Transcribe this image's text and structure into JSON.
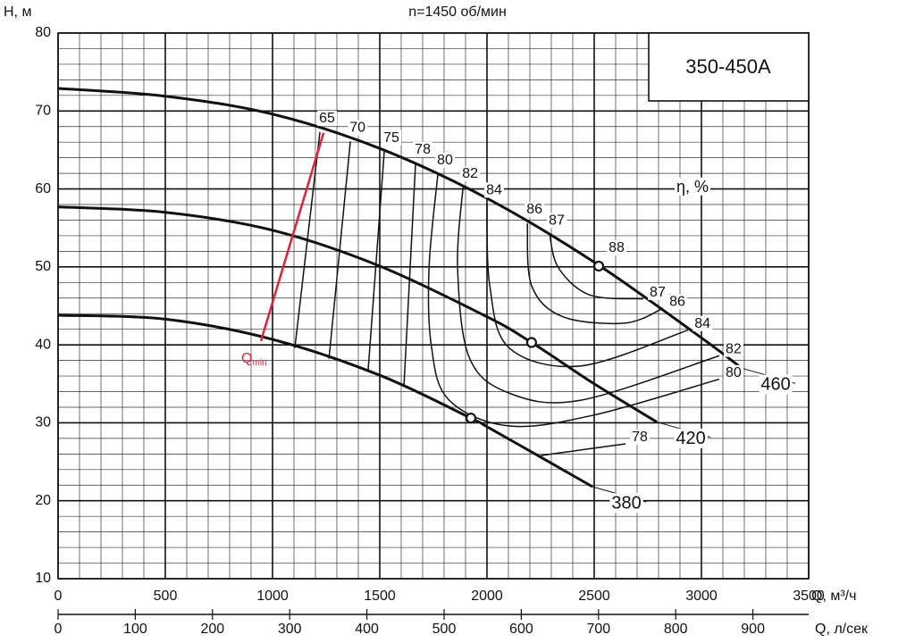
{
  "chart_data": {
    "type": "line",
    "title": "n=1450 об/мин",
    "model": "350-450A",
    "ylabel": "H, м",
    "xlabel": "Q, м³/ч",
    "x2label": "Q, л/сек",
    "eta_label": "η, %",
    "xlim": [
      0,
      3500
    ],
    "xticks": [
      0,
      500,
      1000,
      1500,
      2000,
      2500,
      3000,
      3500
    ],
    "x2lim": [
      0,
      972.2
    ],
    "x2ticks": [
      0,
      100,
      200,
      300,
      400,
      500,
      600,
      700,
      800,
      900
    ],
    "ylim": [
      10,
      80
    ],
    "yticks": [
      10,
      20,
      30,
      40,
      50,
      60,
      70,
      80
    ],
    "grid": true,
    "grid_minor": {
      "x": 100,
      "y": 2
    },
    "curves": [
      {
        "name": "460",
        "color": "#111111",
        "x": [
          0,
          500,
          1000,
          1500,
          2000,
          2500,
          3000,
          3188
        ],
        "values": [
          72.9,
          71.9,
          69.6,
          65.2,
          58.8,
          50.6,
          40.9,
          37.0
        ]
      },
      {
        "name": "420",
        "color": "#111111",
        "x": [
          0,
          500,
          1000,
          1500,
          2000,
          2208,
          2500,
          2792
        ],
        "values": [
          57.7,
          57.0,
          54.7,
          50.1,
          43.6,
          40.3,
          35.0,
          30.1
        ]
      },
      {
        "name": "380",
        "color": "#111111",
        "x": [
          0,
          500,
          1000,
          1500,
          1925,
          2000,
          2250,
          2492
        ],
        "values": [
          43.8,
          43.3,
          40.7,
          36.1,
          30.6,
          29.5,
          25.6,
          21.8
        ]
      }
    ],
    "qmin": {
      "label": "Q",
      "sub": "min",
      "color": "#e0223a",
      "x": [
        1238,
        946
      ],
      "values": [
        67.2,
        40.5
      ]
    },
    "efficiency": [
      {
        "eta": 65,
        "x": [
          1221,
          1104
        ],
        "values": [
          67.3,
          39.6
        ]
      },
      {
        "eta": 70,
        "x": [
          1363,
          1263
        ],
        "values": [
          66.1,
          38.2
        ]
      },
      {
        "eta": 75,
        "x": [
          1521,
          1446
        ],
        "values": [
          64.8,
          36.8
        ]
      },
      {
        "eta": 78,
        "x": [
          1667,
          1613,
          null,
          2250,
          2646
        ],
        "values": [
          63.3,
          34.8,
          null,
          25.8,
          27.3
        ]
      },
      {
        "eta": 80,
        "x": [
          1771,
          1730,
          1740,
          1820,
          2100,
          2500,
          3083
        ],
        "values": [
          61.9,
          50.0,
          40.0,
          33.0,
          29.6,
          31.0,
          35.6
        ]
      },
      {
        "eta": 82,
        "x": [
          1888,
          1863,
          1917,
          2104,
          2438,
          3083
        ],
        "values": [
          60.2,
          49.9,
          38.4,
          33.8,
          32.9,
          38.6
        ]
      },
      {
        "eta": 84,
        "x": [
          2000,
          2013,
          2104,
          2438,
          2938
        ],
        "values": [
          58.1,
          47.6,
          39.6,
          37.3,
          41.9
        ]
      },
      {
        "eta": 86,
        "x": [
          2188,
          2208,
          2354,
          2646,
          2821
        ],
        "values": [
          55.6,
          47.6,
          43.6,
          42.8,
          44.7
        ]
      },
      {
        "eta": 87,
        "x": [
          2292,
          2333,
          2479,
          2729
        ],
        "values": [
          54.2,
          49.9,
          46.4,
          45.9
        ]
      }
    ],
    "bep": {
      "eta": 88,
      "x": [
        2521,
        2208,
        1925
      ],
      "values": [
        50.1,
        40.3,
        30.6
      ]
    }
  }
}
